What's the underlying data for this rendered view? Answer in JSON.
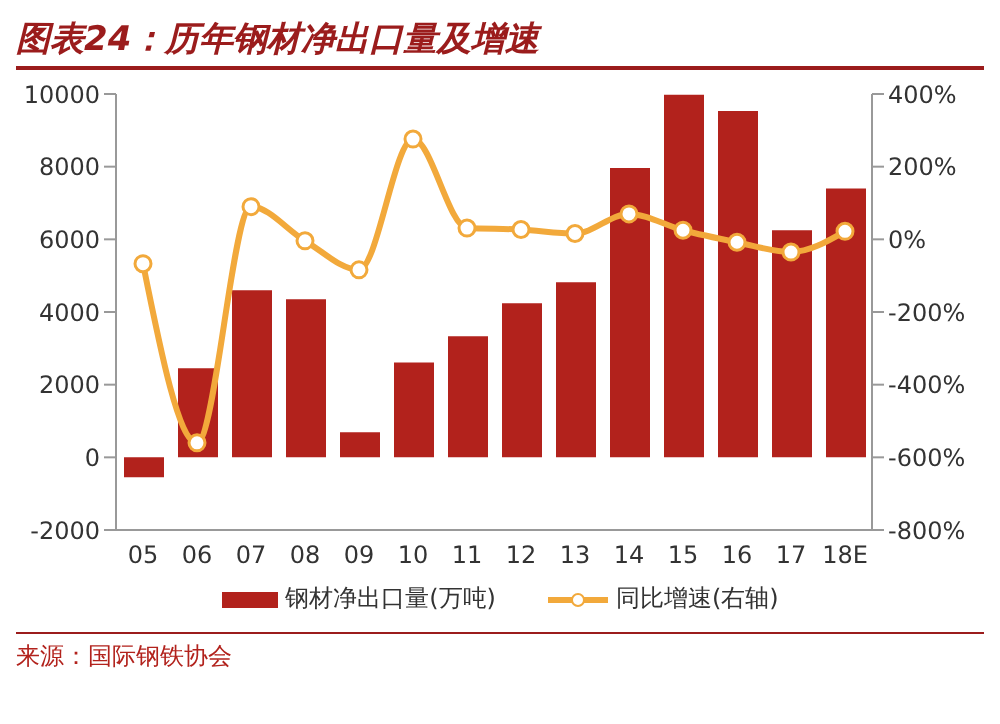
{
  "chart_data": {
    "type": "bar",
    "title": "图表24：历年钢材净出口量及增速",
    "categories": [
      "05",
      "06",
      "07",
      "08",
      "09",
      "10",
      "11",
      "12",
      "13",
      "14",
      "15",
      "16",
      "17",
      "18E"
    ],
    "series": [
      {
        "name": "钢材净出口量(万吨)",
        "color": "#b2221c",
        "values": [
          -550,
          2450,
          4600,
          4350,
          690,
          2610,
          3330,
          4240,
          4820,
          7960,
          9980,
          9530,
          6250,
          7400
        ]
      },
      {
        "name": "同比增速(右轴)",
        "type": "line",
        "axis": "y2",
        "color": "#f2a93b",
        "values": [
          -67,
          -560,
          90,
          -4,
          -84,
          276,
          31,
          27,
          16,
          70,
          25,
          -8,
          -35,
          22
        ]
      }
    ],
    "ylim": [
      -2000,
      10000
    ],
    "yticks": [
      -2000,
      0,
      2000,
      4000,
      6000,
      8000,
      10000
    ],
    "y2lim": [
      -800,
      400
    ],
    "y2ticks": [
      {
        "value": -800,
        "label": "-800%"
      },
      {
        "value": -600,
        "label": "-600%"
      },
      {
        "value": -400,
        "label": "-400%"
      },
      {
        "value": -200,
        "label": "-200%"
      },
      {
        "value": 0,
        "label": "0%"
      },
      {
        "value": 200,
        "label": "200%"
      },
      {
        "value": 400,
        "label": "400%"
      }
    ],
    "marker": "circle",
    "legend": "bottom",
    "grid": false,
    "annotations": [
      "来源：国际钢铁协会"
    ]
  }
}
